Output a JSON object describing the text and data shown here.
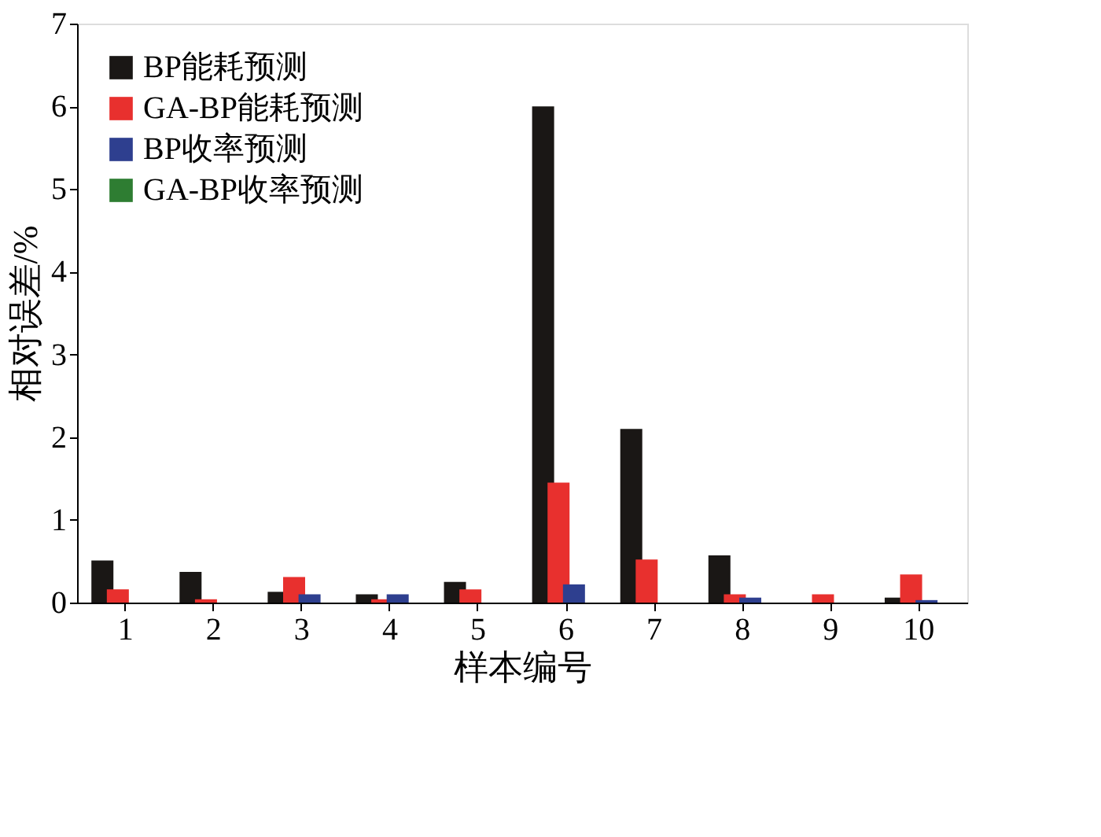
{
  "chart_data": {
    "type": "bar",
    "xlabel": "样本编号",
    "ylabel": "相对误差/%",
    "categories": [
      "1",
      "2",
      "3",
      "4",
      "5",
      "6",
      "7",
      "8",
      "9",
      "10"
    ],
    "series": [
      {
        "name": "BP能耗预测",
        "color": "#1a1715",
        "values": [
          0.51,
          0.37,
          0.13,
          0.1,
          0.25,
          6.0,
          2.1,
          0.57,
          0,
          0.06
        ]
      },
      {
        "name": "GA-BP能耗预测",
        "color": "#e8302e",
        "values": [
          0.16,
          0.04,
          0.31,
          0.04,
          0.16,
          1.45,
          0.52,
          0.1,
          0.1,
          0.34
        ]
      },
      {
        "name": "BP收率预测",
        "color": "#2e3f8f",
        "values": [
          0,
          0,
          0.1,
          0.1,
          0,
          0.22,
          0,
          0.06,
          0,
          0.03
        ]
      },
      {
        "name": "GA-BP收率预测",
        "color": "#2e7d32",
        "values": [
          0,
          0,
          0,
          0,
          0,
          0,
          0,
          0,
          0,
          0
        ]
      }
    ],
    "ylim": [
      0,
      7
    ],
    "yticks": [
      0,
      1,
      2,
      3,
      4,
      5,
      6,
      7
    ],
    "grid": false,
    "legend": "top left"
  }
}
